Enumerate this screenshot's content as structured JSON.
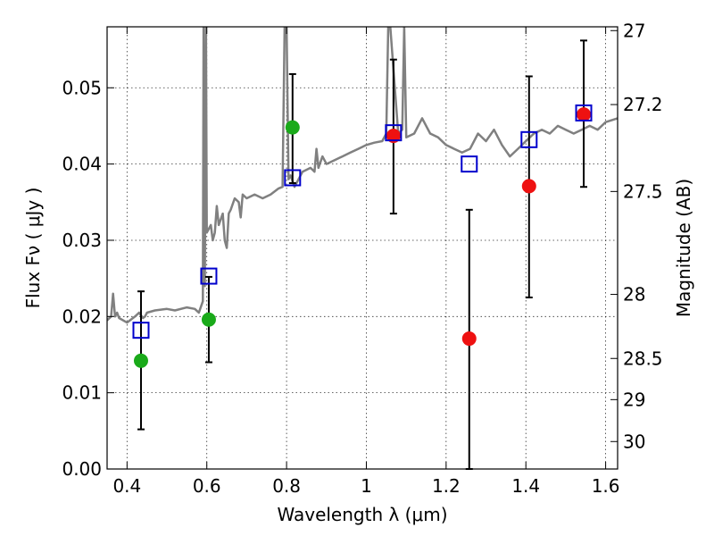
{
  "chart_data": {
    "type": "scatter",
    "xlabel": "Wavelength  λ (μm)",
    "ylabel": "Flux  Fν  ( μJy )",
    "y2label": "Magnitude (AB)",
    "xlim": [
      0.35,
      1.63
    ],
    "ylim": [
      0.0,
      0.058
    ],
    "x_ticks": [
      0.4,
      0.6,
      0.8,
      1.0,
      1.2,
      1.4,
      1.6
    ],
    "x_tick_labels": [
      "0.4",
      "0.6",
      "0.8",
      "1",
      "1.2",
      "1.4",
      "1.6"
    ],
    "y_ticks": [
      0.0,
      0.01,
      0.02,
      0.03,
      0.04,
      0.05
    ],
    "y_tick_labels": [
      "0.00",
      "0.01",
      "0.02",
      "0.03",
      "0.04",
      "0.05"
    ],
    "y2_ticks": [
      {
        "flux": 0.0575,
        "label": "27"
      },
      {
        "flux": 0.0478,
        "label": "27.2"
      },
      {
        "flux": 0.0364,
        "label": "27.5"
      },
      {
        "flux": 0.0229,
        "label": "28"
      },
      {
        "flux": 0.0145,
        "label": "28.5"
      },
      {
        "flux": 0.0091,
        "label": "29"
      },
      {
        "flux": 0.0036,
        "label": "30"
      }
    ],
    "grid": true,
    "colors": {
      "template": "#808080",
      "model": "#0000cc",
      "green_points": "#1aaa1a",
      "red_points": "#ee1111",
      "errorbar": "#000000"
    },
    "template_spectrum": {
      "x": [
        0.35,
        0.36,
        0.365,
        0.37,
        0.375,
        0.38,
        0.4,
        0.42,
        0.43,
        0.44,
        0.445,
        0.45,
        0.47,
        0.5,
        0.52,
        0.55,
        0.57,
        0.58,
        0.59,
        0.592,
        0.595,
        0.598,
        0.6,
        0.61,
        0.615,
        0.62,
        0.625,
        0.63,
        0.64,
        0.645,
        0.65,
        0.655,
        0.66,
        0.67,
        0.68,
        0.685,
        0.69,
        0.7,
        0.72,
        0.74,
        0.76,
        0.78,
        0.79,
        0.795,
        0.8,
        0.805,
        0.81,
        0.82,
        0.84,
        0.86,
        0.87,
        0.875,
        0.88,
        0.89,
        0.9,
        0.92,
        0.94,
        0.96,
        0.98,
        1.0,
        1.02,
        1.04,
        1.05,
        1.055,
        1.06,
        1.08,
        1.09,
        1.095,
        1.1,
        1.12,
        1.14,
        1.16,
        1.18,
        1.2,
        1.22,
        1.24,
        1.26,
        1.28,
        1.3,
        1.32,
        1.34,
        1.36,
        1.38,
        1.4,
        1.42,
        1.44,
        1.46,
        1.48,
        1.5,
        1.52,
        1.54,
        1.56,
        1.58,
        1.6,
        1.63
      ],
      "y": [
        0.0195,
        0.02,
        0.023,
        0.02,
        0.0205,
        0.0198,
        0.0192,
        0.02,
        0.0205,
        0.0198,
        0.02,
        0.0205,
        0.0208,
        0.021,
        0.0208,
        0.0212,
        0.021,
        0.0205,
        0.022,
        0.058,
        0.024,
        0.058,
        0.031,
        0.032,
        0.03,
        0.031,
        0.0345,
        0.032,
        0.0335,
        0.03,
        0.029,
        0.0335,
        0.034,
        0.0355,
        0.035,
        0.033,
        0.036,
        0.0355,
        0.036,
        0.0355,
        0.036,
        0.0368,
        0.037,
        0.058,
        0.058,
        0.038,
        0.0385,
        0.037,
        0.039,
        0.0395,
        0.039,
        0.042,
        0.0395,
        0.041,
        0.04,
        0.0405,
        0.041,
        0.0415,
        0.042,
        0.0425,
        0.0428,
        0.043,
        0.044,
        0.058,
        0.058,
        0.044,
        0.0445,
        0.058,
        0.0435,
        0.044,
        0.046,
        0.044,
        0.0435,
        0.0425,
        0.042,
        0.0415,
        0.042,
        0.044,
        0.043,
        0.0445,
        0.0425,
        0.041,
        0.042,
        0.043,
        0.044,
        0.0445,
        0.044,
        0.045,
        0.0445,
        0.044,
        0.0445,
        0.045,
        0.0445,
        0.0455,
        0.046
      ]
    },
    "model_points": {
      "x": [
        0.435,
        0.605,
        0.815,
        1.068,
        1.258,
        1.408,
        1.545
      ],
      "y": [
        0.0182,
        0.0253,
        0.0382,
        0.0441,
        0.04,
        0.0432,
        0.0467
      ]
    },
    "green_points": {
      "x": [
        0.435,
        0.605,
        0.815
      ],
      "y": [
        0.0142,
        0.0196,
        0.0448
      ],
      "err_low": [
        0.0052,
        0.014,
        0.0375
      ],
      "err_high": [
        0.0233,
        0.0252,
        0.0518
      ]
    },
    "red_points": {
      "x": [
        1.068,
        1.258,
        1.408,
        1.545
      ],
      "y": [
        0.0437,
        0.0171,
        0.0371,
        0.0465
      ],
      "err_low": [
        0.0335,
        0.0,
        0.0225,
        0.037
      ],
      "err_high": [
        0.0537,
        0.034,
        0.0515,
        0.0562
      ]
    }
  }
}
